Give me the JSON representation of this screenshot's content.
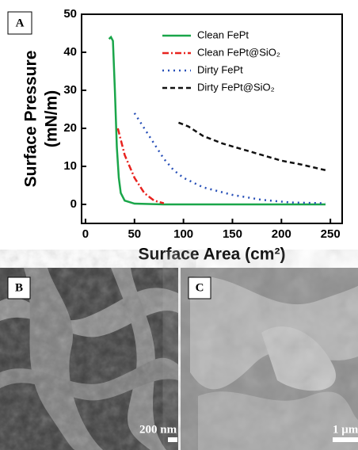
{
  "chart_data": {
    "type": "line",
    "ylabel_lines": [
      "Surface Pressure",
      "(mN/m)"
    ],
    "xlabel": "Surface Area (cm²)",
    "xlim": [
      -4,
      262
    ],
    "xticks": [
      0,
      50,
      100,
      150,
      200,
      250
    ],
    "ylim": [
      -5,
      50
    ],
    "yticks": [
      0,
      10,
      20,
      30,
      40,
      50
    ],
    "legend": "upper right",
    "series": [
      {
        "name": "Clean FePt",
        "color": "#1aa64a",
        "dash": "solid",
        "x": [
          24,
          26,
          28,
          30,
          32,
          34,
          36,
          40,
          50,
          80,
          150,
          245
        ],
        "values": [
          43.5,
          44,
          43,
          30,
          15,
          7,
          3,
          1,
          0.2,
          0,
          0,
          0
        ]
      },
      {
        "name": "Clean FePt@SiO₂",
        "color": "#e8231f",
        "dash": "dashdot",
        "x": [
          33,
          40,
          50,
          60,
          70,
          80
        ],
        "values": [
          20,
          13,
          7,
          3,
          1,
          0.3
        ]
      },
      {
        "name": "Dirty FePt",
        "color": "#2850b8",
        "dash": "dotted",
        "x": [
          50,
          60,
          70,
          80,
          90,
          100,
          120,
          150,
          180,
          210,
          245
        ],
        "values": [
          24,
          20,
          16,
          12,
          9,
          7,
          4.5,
          2.5,
          1.2,
          0.5,
          0.3
        ]
      },
      {
        "name": "Dirty FePt@SiO₂",
        "color": "#111111",
        "dash": "dashed",
        "x": [
          95,
          105,
          120,
          140,
          160,
          180,
          200,
          220,
          245
        ],
        "values": [
          21.5,
          20.5,
          18,
          16,
          14.5,
          13,
          11.5,
          10.5,
          9
        ]
      }
    ]
  },
  "panel_labels": [
    "A",
    "B",
    "C"
  ],
  "scale_bars": [
    "200 nm",
    "1 μm"
  ]
}
